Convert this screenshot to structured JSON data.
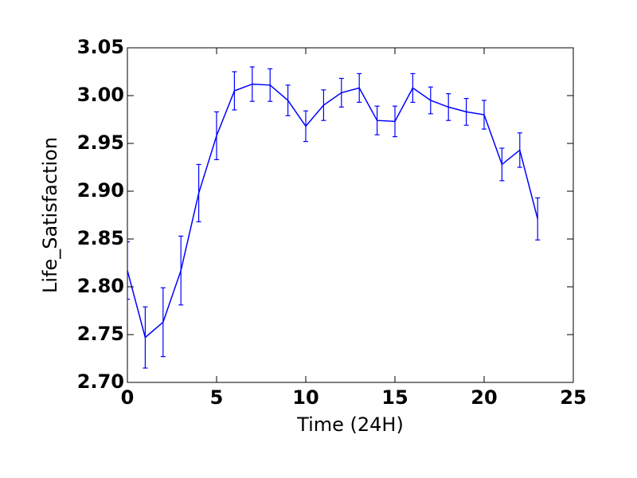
{
  "chart_data": {
    "type": "line",
    "x_label": "Time (24H)",
    "y_label": "Life_Satisfaction",
    "x": [
      0,
      1,
      2,
      3,
      4,
      5,
      6,
      7,
      8,
      9,
      10,
      11,
      12,
      13,
      14,
      15,
      16,
      17,
      18,
      19,
      20,
      21,
      22,
      23
    ],
    "values": [
      2.817,
      2.747,
      2.763,
      2.817,
      2.898,
      2.958,
      3.005,
      3.012,
      3.011,
      2.995,
      2.968,
      2.99,
      3.003,
      3.008,
      2.974,
      2.973,
      3.008,
      2.995,
      2.988,
      2.983,
      2.98,
      2.928,
      2.943,
      2.871
    ],
    "errors": [
      0.03,
      0.032,
      0.036,
      0.036,
      0.03,
      0.025,
      0.02,
      0.018,
      0.017,
      0.016,
      0.016,
      0.016,
      0.015,
      0.015,
      0.015,
      0.016,
      0.015,
      0.014,
      0.014,
      0.014,
      0.015,
      0.017,
      0.018,
      0.022
    ],
    "color": "#0000ff",
    "xlim": [
      0,
      25
    ],
    "xticks": [
      0,
      5,
      10,
      15,
      20,
      25
    ],
    "ylim": [
      2.7,
      3.05
    ],
    "yticks": [
      {
        "value": 2.7,
        "label": "2.70"
      },
      2.75,
      {
        "value": 2.8,
        "label": "2.80"
      },
      2.85,
      {
        "value": 2.9,
        "label": "2.90"
      },
      2.95,
      {
        "value": 3,
        "label": "3.00"
      },
      3.05
    ]
  }
}
